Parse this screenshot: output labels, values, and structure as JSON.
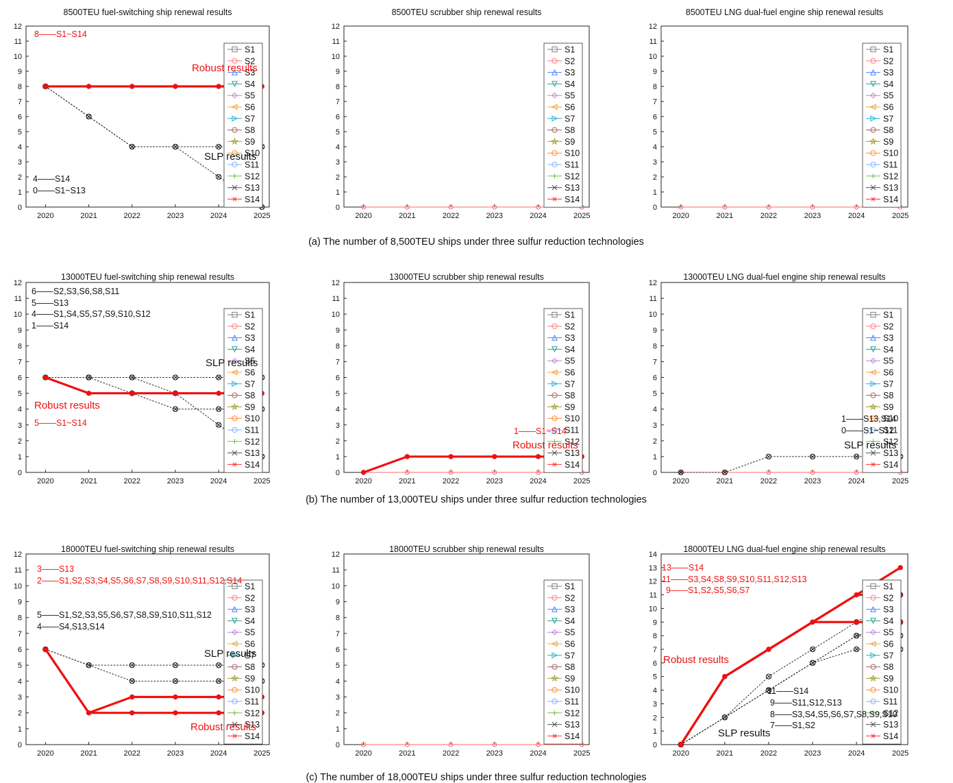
{
  "figure": {
    "row_captions": [
      "(a) The number of 8,500TEU ships under three sulfur reduction technologies",
      "(b) The number of 13,000TEU ships under three sulfur reduction technologies",
      "(c) The number of 18,000TEU ships under three sulfur reduction technologies"
    ]
  },
  "legend": {
    "items": [
      {
        "name": "S1",
        "color": "#808080",
        "marker": "square"
      },
      {
        "name": "S2",
        "color": "#ff7f7f",
        "marker": "circle"
      },
      {
        "name": "S3",
        "color": "#4f7fff",
        "marker": "triangle-up"
      },
      {
        "name": "S4",
        "color": "#2ca08c",
        "marker": "triangle-down"
      },
      {
        "name": "S5",
        "color": "#c080e0",
        "marker": "diamond"
      },
      {
        "name": "S6",
        "color": "#f0a030",
        "marker": "triangle-left"
      },
      {
        "name": "S7",
        "color": "#20b0d0",
        "marker": "triangle-right"
      },
      {
        "name": "S8",
        "color": "#a06060",
        "marker": "circle"
      },
      {
        "name": "S9",
        "color": "#a0a030",
        "marker": "star"
      },
      {
        "name": "S10",
        "color": "#ff8c30",
        "marker": "circle"
      },
      {
        "name": "S11",
        "color": "#80b0ff",
        "marker": "circle"
      },
      {
        "name": "S12",
        "color": "#70c050",
        "marker": "plus"
      },
      {
        "name": "S13",
        "color": "#505050",
        "marker": "x"
      },
      {
        "name": "S14",
        "color": "#ff3030",
        "marker": "asterisk"
      }
    ]
  },
  "colors": {
    "robust": "#ee1111",
    "slp": "#222222",
    "axis": "#222222"
  },
  "chart_data": [
    {
      "type": "line",
      "title": "8500TEU fuel-switching ship renewal results",
      "x": [
        "2020",
        "2021",
        "2022",
        "2023",
        "2024",
        "2025"
      ],
      "ylim": [
        0,
        12
      ],
      "yticks": [
        0,
        1,
        2,
        3,
        4,
        5,
        6,
        7,
        8,
        9,
        10,
        11,
        12
      ],
      "legend_position": "right",
      "robust_lines": [
        [
          8,
          8,
          8,
          8,
          8,
          8
        ]
      ],
      "slp_lines": [
        [
          8,
          6,
          4,
          4,
          4,
          4
        ],
        [
          8,
          6,
          4,
          4,
          2,
          0
        ]
      ],
      "annotations": [
        {
          "text": "Robust results",
          "color": "red",
          "bold": true
        },
        {
          "text": "SLP results",
          "color": "black",
          "bold": false
        },
        {
          "text": "8——S1~S14",
          "color": "red"
        },
        {
          "text": "4——S14",
          "color": "black"
        },
        {
          "text": "0——S1~S13",
          "color": "black"
        }
      ]
    },
    {
      "type": "line",
      "title": "8500TEU scrubber ship renewal results",
      "x": [
        "2020",
        "2021",
        "2022",
        "2023",
        "2024",
        "2025"
      ],
      "ylim": [
        0,
        12
      ],
      "yticks": [
        0,
        1,
        2,
        3,
        4,
        5,
        6,
        7,
        8,
        9,
        10,
        11,
        12
      ],
      "legend_position": "right",
      "robust_lines": [],
      "slp_lines": [],
      "baseline": [
        0,
        0,
        0,
        0,
        0,
        0
      ],
      "annotations": []
    },
    {
      "type": "line",
      "title": "8500TEU LNG dual-fuel engine ship renewal results",
      "x": [
        "2020",
        "2021",
        "2022",
        "2023",
        "2024",
        "2025"
      ],
      "ylim": [
        0,
        12
      ],
      "yticks": [
        0,
        1,
        2,
        3,
        4,
        5,
        6,
        7,
        8,
        9,
        10,
        11,
        12
      ],
      "legend_position": "right",
      "robust_lines": [],
      "slp_lines": [],
      "baseline": [
        0,
        0,
        0,
        0,
        0,
        0
      ],
      "annotations": []
    },
    {
      "type": "line",
      "title": "13000TEU fuel-switching ship renewal results",
      "x": [
        "2020",
        "2021",
        "2022",
        "2023",
        "2024",
        "2025"
      ],
      "ylim": [
        0,
        12
      ],
      "yticks": [
        0,
        1,
        2,
        3,
        4,
        5,
        6,
        7,
        8,
        9,
        10,
        11,
        12
      ],
      "legend_position": "right",
      "robust_lines": [
        [
          6,
          5,
          5,
          5,
          5,
          5
        ]
      ],
      "slp_lines": [
        [
          6,
          6,
          6,
          6,
          6,
          6
        ],
        [
          6,
          6,
          5,
          4,
          4,
          4
        ],
        [
          6,
          6,
          6,
          5,
          3,
          1
        ]
      ],
      "annotations": [
        {
          "text": "6——S2,S3,S6,S8,S11",
          "color": "black"
        },
        {
          "text": "5——S13",
          "color": "black"
        },
        {
          "text": "4——S1,S4,S5,S7,S9,S10,S12",
          "color": "black"
        },
        {
          "text": "1——S14",
          "color": "black"
        },
        {
          "text": "SLP results",
          "color": "black",
          "bold": false
        },
        {
          "text": "Robust results",
          "color": "red",
          "bold": true
        },
        {
          "text": "5——S1~S14",
          "color": "red"
        }
      ]
    },
    {
      "type": "line",
      "title": "13000TEU scrubber ship renewal results",
      "x": [
        "2020",
        "2021",
        "2022",
        "2023",
        "2024",
        "2025"
      ],
      "ylim": [
        0,
        12
      ],
      "yticks": [
        0,
        1,
        2,
        3,
        4,
        5,
        6,
        7,
        8,
        9,
        10,
        11,
        12
      ],
      "legend_position": "right",
      "robust_lines": [
        [
          0,
          1,
          1,
          1,
          1,
          1
        ]
      ],
      "slp_lines": [],
      "baseline": [
        0,
        0,
        0,
        0,
        0,
        0
      ],
      "annotations": [
        {
          "text": "1——S1~S14",
          "color": "red"
        },
        {
          "text": "Robust results",
          "color": "red",
          "bold": true
        }
      ]
    },
    {
      "type": "line",
      "title": "13000TEU LNG dual-fuel engine ship renewal results",
      "x": [
        "2020",
        "2021",
        "2022",
        "2023",
        "2024",
        "2025"
      ],
      "ylim": [
        0,
        12
      ],
      "yticks": [
        0,
        1,
        2,
        3,
        4,
        5,
        6,
        7,
        8,
        9,
        10,
        11,
        12
      ],
      "legend_position": "right",
      "robust_lines": [],
      "slp_lines": [
        [
          0,
          0,
          1,
          1,
          1,
          1
        ]
      ],
      "baseline": [
        0,
        0,
        0,
        0,
        0,
        0
      ],
      "annotations": [
        {
          "text": "1——S13,S14",
          "color": "black"
        },
        {
          "text": "0——S1~S12",
          "color": "black"
        },
        {
          "text": "SLP results",
          "color": "black",
          "bold": false
        }
      ]
    },
    {
      "type": "line",
      "title": "18000TEU fuel-switching ship renewal results",
      "x": [
        "2020",
        "2021",
        "2022",
        "2023",
        "2024",
        "2025"
      ],
      "ylim": [
        0,
        12
      ],
      "yticks": [
        0,
        1,
        2,
        3,
        4,
        5,
        6,
        7,
        8,
        9,
        10,
        11,
        12
      ],
      "legend_position": "right",
      "robust_lines": [
        [
          6,
          2,
          3,
          3,
          3,
          3
        ],
        [
          6,
          2,
          2,
          2,
          2,
          2
        ]
      ],
      "slp_lines": [
        [
          6,
          5,
          5,
          5,
          5,
          5
        ],
        [
          6,
          5,
          4,
          4,
          4,
          4
        ]
      ],
      "annotations": [
        {
          "text": "3——S13",
          "color": "red"
        },
        {
          "text": "2——S1,S2,S3,S4,S5,S6,S7,S8,S9,S10,S11,S12,S14",
          "color": "red"
        },
        {
          "text": "5——S1,S2,S3,S5,S6,S7,S8,S9,S10,S11,S12",
          "color": "black"
        },
        {
          "text": "4——S4,S13,S14",
          "color": "black"
        },
        {
          "text": "SLP results",
          "color": "black",
          "bold": false
        },
        {
          "text": "Robust results",
          "color": "red",
          "bold": true
        }
      ]
    },
    {
      "type": "line",
      "title": "18000TEU scrubber ship renewal results",
      "x": [
        "2020",
        "2021",
        "2022",
        "2023",
        "2024",
        "2025"
      ],
      "ylim": [
        0,
        12
      ],
      "yticks": [
        0,
        1,
        2,
        3,
        4,
        5,
        6,
        7,
        8,
        9,
        10,
        11,
        12
      ],
      "legend_position": "right",
      "robust_lines": [],
      "slp_lines": [],
      "baseline": [
        0,
        0,
        0,
        0,
        0,
        0
      ],
      "annotations": []
    },
    {
      "type": "line",
      "title": "18000TEU LNG dual-fuel engine ship renewal results",
      "x": [
        "2020",
        "2021",
        "2022",
        "2023",
        "2024",
        "2025"
      ],
      "ylim": [
        0,
        14
      ],
      "yticks": [
        0,
        1,
        2,
        3,
        4,
        5,
        6,
        7,
        8,
        9,
        10,
        11,
        12,
        13,
        14
      ],
      "legend_position": "right",
      "robust_lines": [
        [
          0,
          5,
          7,
          9,
          11,
          13
        ],
        [
          0,
          5,
          7,
          9,
          11,
          11
        ],
        [
          0,
          5,
          7,
          9,
          9,
          9
        ]
      ],
      "slp_lines": [
        [
          0,
          2,
          5,
          7,
          9,
          11
        ],
        [
          0,
          2,
          4,
          6,
          8,
          9
        ],
        [
          0,
          2,
          4,
          6,
          8,
          8
        ],
        [
          0,
          2,
          4,
          6,
          7,
          7
        ]
      ],
      "annotations": [
        {
          "text": "13——S14",
          "color": "red"
        },
        {
          "text": "11——S3,S4,S8,S9,S10,S11,S12,S13",
          "color": "red"
        },
        {
          "text": "9——S1,S2,S5,S6,S7",
          "color": "red"
        },
        {
          "text": "Robust results",
          "color": "red",
          "bold": true
        },
        {
          "text": "11——S14",
          "color": "black"
        },
        {
          "text": "9——S11,S12,S13",
          "color": "black"
        },
        {
          "text": "8——S3,S4,S5,S6,S7,S8,S9,S10",
          "color": "black"
        },
        {
          "text": "7——S1,S2",
          "color": "black"
        },
        {
          "text": "SLP results",
          "color": "black",
          "bold": false
        }
      ]
    }
  ]
}
